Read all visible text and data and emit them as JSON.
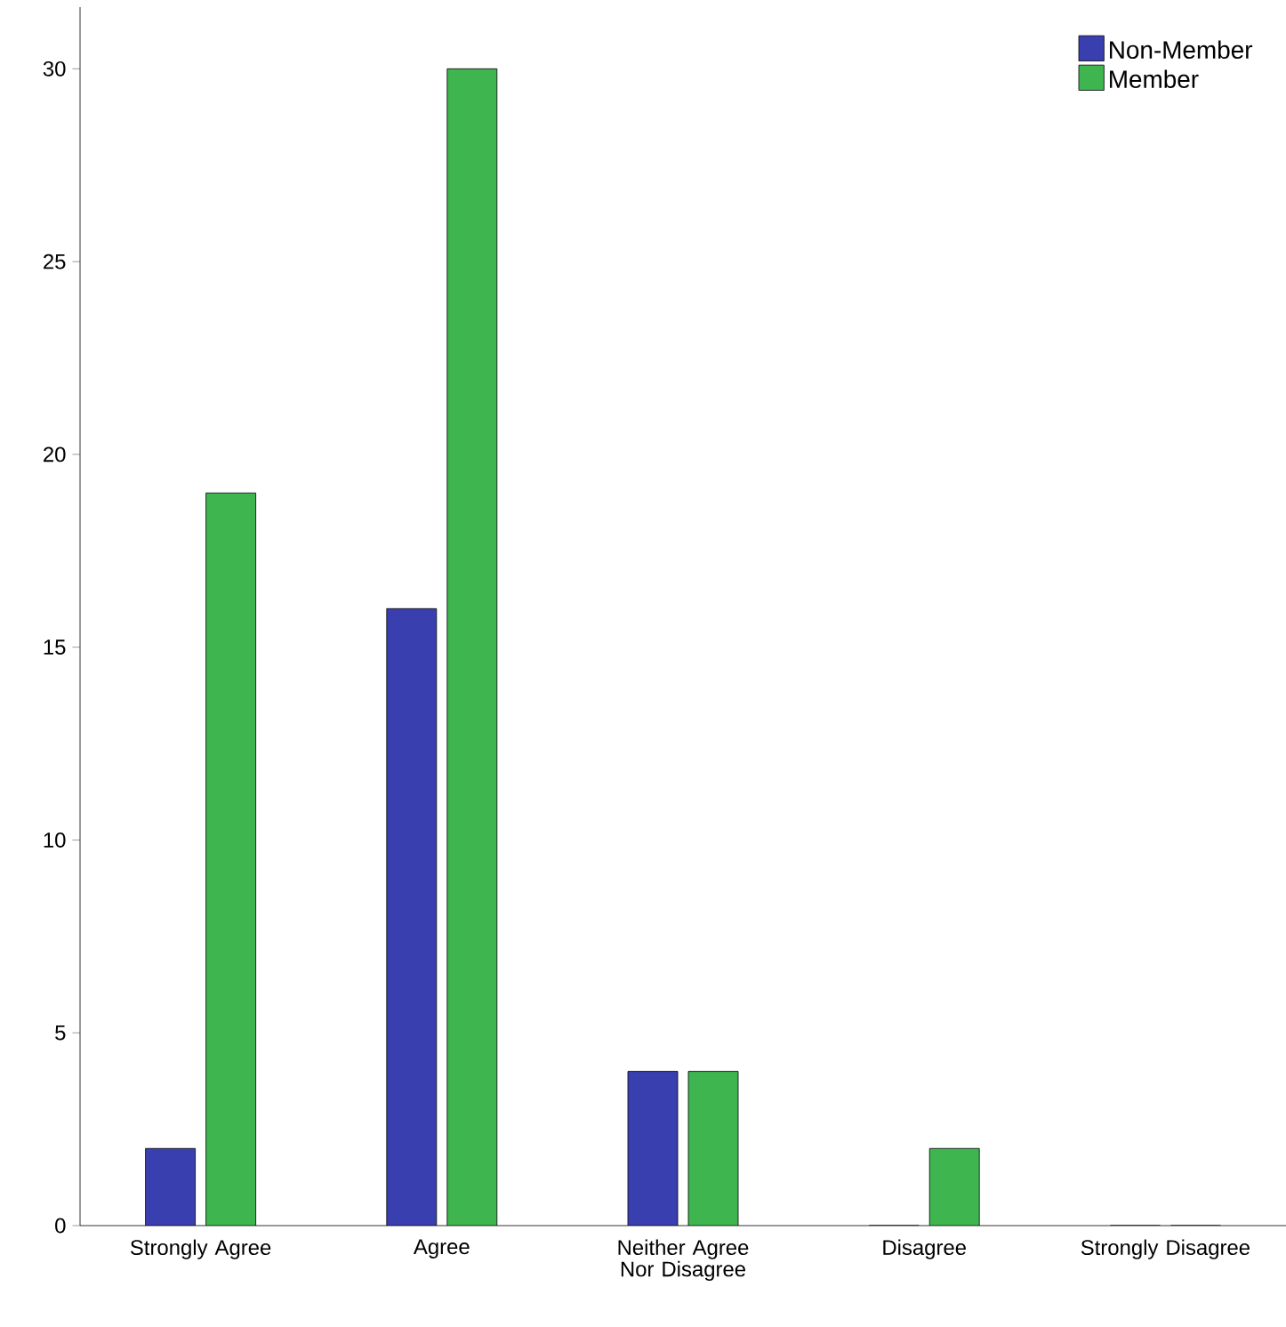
{
  "chart_data": {
    "type": "bar",
    "categories": [
      "Strongly Agree",
      "Agree",
      "Neither Agree Nor Disagree",
      "Disagree",
      "Strongly Disagree"
    ],
    "series": [
      {
        "name": "Non-Member",
        "color": "#3a3fb0",
        "values": [
          2,
          16,
          4,
          0,
          0
        ]
      },
      {
        "name": "Member",
        "color": "#3fb550",
        "values": [
          19,
          30,
          4,
          2,
          0
        ]
      }
    ],
    "ylim": [
      0,
      31.6
    ],
    "yticks": [
      0,
      5,
      10,
      15,
      20,
      25,
      30
    ],
    "legend": "top right",
    "grid": false
  }
}
